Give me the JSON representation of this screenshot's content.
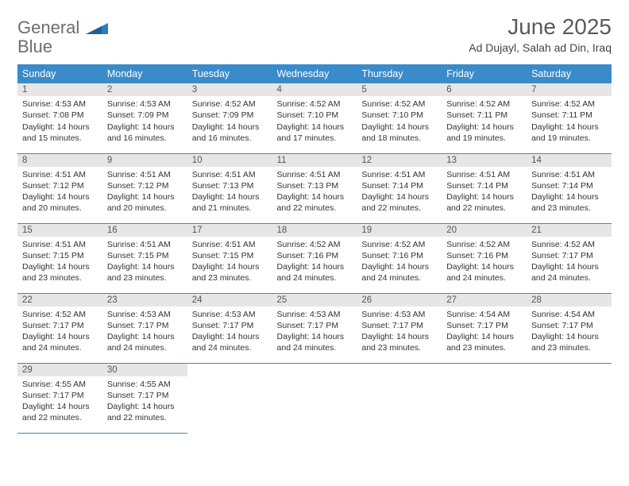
{
  "logo": {
    "word1": "General",
    "word2": "Blue"
  },
  "title": "June 2025",
  "subtitle": "Ad Dujayl, Salah ad Din, Iraq",
  "colors": {
    "header_bg": "#3a8bc9",
    "header_text": "#ffffff",
    "daynum_bg": "#e6e6e6",
    "border": "#3a8bc9",
    "title_color": "#5a5a5a",
    "logo_gray": "#6d6d6d",
    "logo_blue": "#2b7bbf"
  },
  "day_headers": [
    "Sunday",
    "Monday",
    "Tuesday",
    "Wednesday",
    "Thursday",
    "Friday",
    "Saturday"
  ],
  "days": [
    {
      "n": 1,
      "sunrise": "4:53 AM",
      "sunset": "7:08 PM",
      "daylight": "14 hours and 15 minutes."
    },
    {
      "n": 2,
      "sunrise": "4:53 AM",
      "sunset": "7:09 PM",
      "daylight": "14 hours and 16 minutes."
    },
    {
      "n": 3,
      "sunrise": "4:52 AM",
      "sunset": "7:09 PM",
      "daylight": "14 hours and 16 minutes."
    },
    {
      "n": 4,
      "sunrise": "4:52 AM",
      "sunset": "7:10 PM",
      "daylight": "14 hours and 17 minutes."
    },
    {
      "n": 5,
      "sunrise": "4:52 AM",
      "sunset": "7:10 PM",
      "daylight": "14 hours and 18 minutes."
    },
    {
      "n": 6,
      "sunrise": "4:52 AM",
      "sunset": "7:11 PM",
      "daylight": "14 hours and 19 minutes."
    },
    {
      "n": 7,
      "sunrise": "4:52 AM",
      "sunset": "7:11 PM",
      "daylight": "14 hours and 19 minutes."
    },
    {
      "n": 8,
      "sunrise": "4:51 AM",
      "sunset": "7:12 PM",
      "daylight": "14 hours and 20 minutes."
    },
    {
      "n": 9,
      "sunrise": "4:51 AM",
      "sunset": "7:12 PM",
      "daylight": "14 hours and 20 minutes."
    },
    {
      "n": 10,
      "sunrise": "4:51 AM",
      "sunset": "7:13 PM",
      "daylight": "14 hours and 21 minutes."
    },
    {
      "n": 11,
      "sunrise": "4:51 AM",
      "sunset": "7:13 PM",
      "daylight": "14 hours and 22 minutes."
    },
    {
      "n": 12,
      "sunrise": "4:51 AM",
      "sunset": "7:14 PM",
      "daylight": "14 hours and 22 minutes."
    },
    {
      "n": 13,
      "sunrise": "4:51 AM",
      "sunset": "7:14 PM",
      "daylight": "14 hours and 22 minutes."
    },
    {
      "n": 14,
      "sunrise": "4:51 AM",
      "sunset": "7:14 PM",
      "daylight": "14 hours and 23 minutes."
    },
    {
      "n": 15,
      "sunrise": "4:51 AM",
      "sunset": "7:15 PM",
      "daylight": "14 hours and 23 minutes."
    },
    {
      "n": 16,
      "sunrise": "4:51 AM",
      "sunset": "7:15 PM",
      "daylight": "14 hours and 23 minutes."
    },
    {
      "n": 17,
      "sunrise": "4:51 AM",
      "sunset": "7:15 PM",
      "daylight": "14 hours and 23 minutes."
    },
    {
      "n": 18,
      "sunrise": "4:52 AM",
      "sunset": "7:16 PM",
      "daylight": "14 hours and 24 minutes."
    },
    {
      "n": 19,
      "sunrise": "4:52 AM",
      "sunset": "7:16 PM",
      "daylight": "14 hours and 24 minutes."
    },
    {
      "n": 20,
      "sunrise": "4:52 AM",
      "sunset": "7:16 PM",
      "daylight": "14 hours and 24 minutes."
    },
    {
      "n": 21,
      "sunrise": "4:52 AM",
      "sunset": "7:17 PM",
      "daylight": "14 hours and 24 minutes."
    },
    {
      "n": 22,
      "sunrise": "4:52 AM",
      "sunset": "7:17 PM",
      "daylight": "14 hours and 24 minutes."
    },
    {
      "n": 23,
      "sunrise": "4:53 AM",
      "sunset": "7:17 PM",
      "daylight": "14 hours and 24 minutes."
    },
    {
      "n": 24,
      "sunrise": "4:53 AM",
      "sunset": "7:17 PM",
      "daylight": "14 hours and 24 minutes."
    },
    {
      "n": 25,
      "sunrise": "4:53 AM",
      "sunset": "7:17 PM",
      "daylight": "14 hours and 24 minutes."
    },
    {
      "n": 26,
      "sunrise": "4:53 AM",
      "sunset": "7:17 PM",
      "daylight": "14 hours and 23 minutes."
    },
    {
      "n": 27,
      "sunrise": "4:54 AM",
      "sunset": "7:17 PM",
      "daylight": "14 hours and 23 minutes."
    },
    {
      "n": 28,
      "sunrise": "4:54 AM",
      "sunset": "7:17 PM",
      "daylight": "14 hours and 23 minutes."
    },
    {
      "n": 29,
      "sunrise": "4:55 AM",
      "sunset": "7:17 PM",
      "daylight": "14 hours and 22 minutes."
    },
    {
      "n": 30,
      "sunrise": "4:55 AM",
      "sunset": "7:17 PM",
      "daylight": "14 hours and 22 minutes."
    }
  ],
  "labels": {
    "sunrise": "Sunrise:",
    "sunset": "Sunset:",
    "daylight": "Daylight:"
  }
}
